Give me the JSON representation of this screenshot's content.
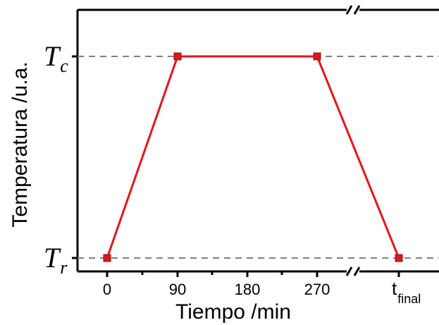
{
  "chart_data": {
    "type": "line",
    "xlabel": "Tiempo /min",
    "ylabel": "Temperatura /u.a.",
    "x_tick_labels": [
      "0",
      "90",
      "180",
      "270"
    ],
    "x_break_label": {
      "main": "t",
      "sub": "final"
    },
    "y_levels": [
      {
        "main": "T",
        "sub": "r",
        "value": 0
      },
      {
        "main": "T",
        "sub": "c",
        "value": 1
      }
    ],
    "series": [
      {
        "x": [
          "0",
          "90",
          "270",
          "tfinal"
        ],
        "y": [
          0,
          1,
          1,
          0
        ],
        "color": "#e8141b"
      }
    ],
    "reference_lines": [
      "T_c",
      "T_r"
    ],
    "axis_break": true,
    "grid": false,
    "legend": false,
    "colors": {
      "line": "#e8141b",
      "marker": "#d61a1f",
      "reference": "#808080",
      "axis": "#000000"
    }
  }
}
